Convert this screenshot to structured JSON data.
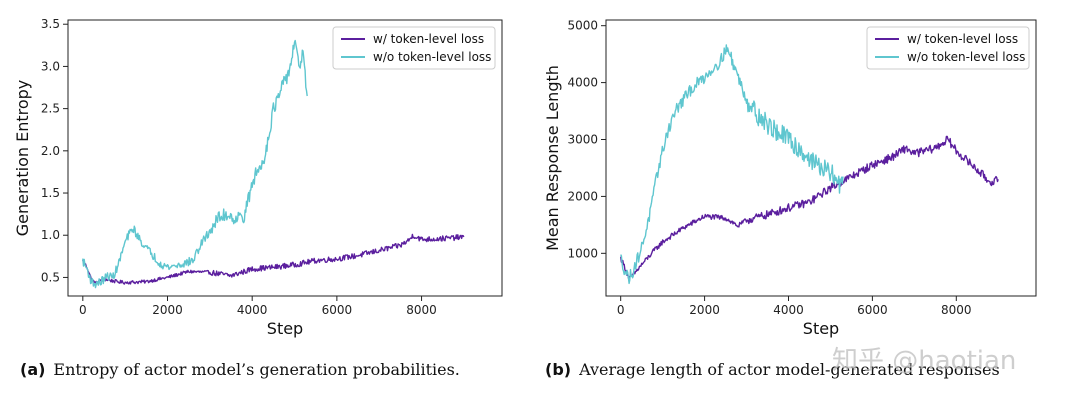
{
  "chart_data": [
    {
      "type": "line",
      "id": "entropy",
      "xlabel": "Step",
      "ylabel": "Generation Entropy",
      "xlim": [
        -350,
        9900
      ],
      "ylim": [
        0.28,
        3.55
      ],
      "xticks": [
        0,
        2000,
        4000,
        6000,
        8000
      ],
      "yticks": [
        0.5,
        1.0,
        1.5,
        2.0,
        2.5,
        3.0,
        3.5
      ],
      "ytick_labels": [
        "0.5",
        "1.0",
        "1.5",
        "2.0",
        "2.5",
        "3.0",
        "3.5"
      ],
      "grid": false,
      "legend_position": "top-right",
      "series": [
        {
          "name": "w/ token-level loss",
          "color": "#5b1f9e",
          "noise": 0.02,
          "x": [
            0,
            100,
            200,
            300,
            400,
            500,
            600,
            700,
            800,
            1000,
            1500,
            2000,
            2500,
            3000,
            3500,
            4000,
            4500,
            5000,
            5500,
            6000,
            6500,
            7000,
            7500,
            7700,
            7800,
            8000,
            8500,
            9000
          ],
          "y": [
            0.7,
            0.62,
            0.48,
            0.43,
            0.46,
            0.48,
            0.47,
            0.46,
            0.45,
            0.44,
            0.45,
            0.5,
            0.57,
            0.56,
            0.52,
            0.6,
            0.62,
            0.65,
            0.7,
            0.72,
            0.76,
            0.82,
            0.88,
            0.94,
            1.0,
            0.95,
            0.96,
            0.98
          ]
        },
        {
          "name": "w/o token-level loss",
          "color": "#5fc6cf",
          "noise": 0.05,
          "x": [
            0,
            100,
            200,
            300,
            400,
            500,
            600,
            700,
            800,
            900,
            1000,
            1100,
            1200,
            1300,
            1500,
            1800,
            2000,
            2300,
            2600,
            2800,
            3000,
            3200,
            3400,
            3600,
            3800,
            3900,
            4000,
            4100,
            4200,
            4300,
            4400,
            4500,
            4600,
            4700,
            4800,
            4900,
            5000,
            5100,
            5200,
            5300
          ],
          "y": [
            0.7,
            0.6,
            0.45,
            0.42,
            0.44,
            0.48,
            0.52,
            0.5,
            0.6,
            0.75,
            0.92,
            1.02,
            1.08,
            0.98,
            0.85,
            0.68,
            0.62,
            0.65,
            0.7,
            0.9,
            1.05,
            1.2,
            1.25,
            1.2,
            1.22,
            1.4,
            1.6,
            1.75,
            1.8,
            1.95,
            2.2,
            2.5,
            2.6,
            2.75,
            2.85,
            3.0,
            3.3,
            3.0,
            3.15,
            2.65
          ]
        }
      ]
    },
    {
      "type": "line",
      "id": "length",
      "xlabel": "Step",
      "ylabel": "Mean Response Length",
      "xlim": [
        -350,
        9900
      ],
      "ylim": [
        250,
        5100
      ],
      "xticks": [
        0,
        2000,
        4000,
        6000,
        8000
      ],
      "yticks": [
        1000,
        2000,
        3000,
        4000,
        5000
      ],
      "ytick_labels": [
        "1000",
        "2000",
        "3000",
        "4000",
        "5000"
      ],
      "grid": false,
      "legend_position": "top-right",
      "series": [
        {
          "name": "w/ token-level loss",
          "color": "#5b1f9e",
          "noise": 45,
          "x": [
            0,
            100,
            200,
            300,
            500,
            800,
            1000,
            1500,
            2000,
            2500,
            2800,
            3000,
            3500,
            4000,
            4500,
            5000,
            5500,
            6000,
            6500,
            6800,
            7000,
            7500,
            7800,
            8000,
            8300,
            8600,
            8800,
            9000
          ],
          "y": [
            920,
            750,
            560,
            620,
            800,
            1050,
            1200,
            1450,
            1650,
            1620,
            1480,
            1580,
            1680,
            1800,
            1900,
            2150,
            2350,
            2550,
            2700,
            2850,
            2750,
            2850,
            3000,
            2800,
            2600,
            2400,
            2250,
            2300
          ]
        },
        {
          "name": "w/o token-level loss",
          "color": "#5fc6cf",
          "noise": 110,
          "x": [
            0,
            100,
            200,
            300,
            500,
            700,
            900,
            1100,
            1300,
            1500,
            1700,
            2000,
            2200,
            2400,
            2500,
            2600,
            2700,
            3000,
            3300,
            3600,
            4000,
            4300,
            4600,
            4900,
            5100,
            5200,
            5300
          ],
          "y": [
            920,
            700,
            560,
            700,
            1100,
            1700,
            2500,
            3100,
            3500,
            3700,
            3900,
            4100,
            4250,
            4400,
            4600,
            4500,
            4300,
            3700,
            3400,
            3200,
            3000,
            2800,
            2600,
            2450,
            2350,
            2200,
            2350
          ]
        }
      ]
    }
  ],
  "captions": [
    {
      "tag": "(a)",
      "text": "Entropy of actor model’s generation probabilities."
    },
    {
      "tag": "(b)",
      "text": "Average length of actor model-generated responses"
    }
  ],
  "watermark": "知乎 @haotian"
}
